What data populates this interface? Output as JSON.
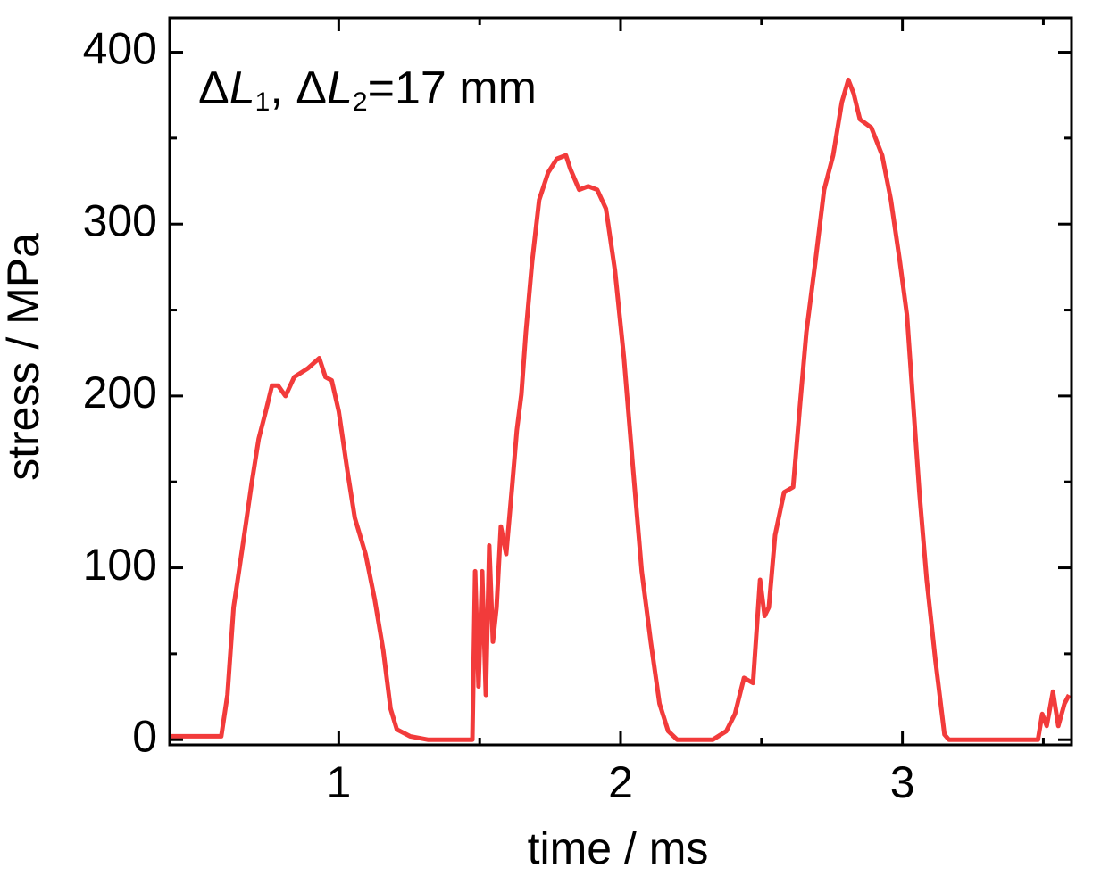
{
  "chart_data": {
    "type": "line",
    "annotation": [
      "Δ",
      "L",
      "1",
      ", Δ",
      "L",
      "2",
      "=17 mm"
    ],
    "xlabel": "time / ms",
    "ylabel": "stress / MPa",
    "xlim": [
      0.4,
      3.6
    ],
    "ylim": [
      -3,
      420
    ],
    "xticks": [
      1,
      2,
      3
    ],
    "yticks": [
      0,
      100,
      200,
      300,
      400
    ],
    "xticks_minor": [
      1.5,
      2.5,
      3.5
    ],
    "yticks_minor": [
      50,
      150,
      250,
      350
    ],
    "series": [
      {
        "color": "#f23b3b",
        "x": [
          0.4,
          0.583,
          0.605,
          0.627,
          0.646,
          0.669,
          0.691,
          0.716,
          0.741,
          0.763,
          0.785,
          0.811,
          0.842,
          0.89,
          0.931,
          0.953,
          0.975,
          1.0,
          1.032,
          1.057,
          1.095,
          1.127,
          1.158,
          1.184,
          1.206,
          1.253,
          1.316,
          1.474,
          1.484,
          1.496,
          1.509,
          1.522,
          1.534,
          1.547,
          1.56,
          1.575,
          1.594,
          1.616,
          1.632,
          1.648,
          1.664,
          1.686,
          1.711,
          1.743,
          1.774,
          1.806,
          1.822,
          1.853,
          1.885,
          1.917,
          1.948,
          1.98,
          2.012,
          2.043,
          2.075,
          2.107,
          2.138,
          2.169,
          2.201,
          2.327,
          2.375,
          2.406,
          2.438,
          2.47,
          2.495,
          2.511,
          2.526,
          2.548,
          2.58,
          2.612,
          2.637,
          2.659,
          2.691,
          2.722,
          2.754,
          2.785,
          2.808,
          2.827,
          2.849,
          2.89,
          2.928,
          2.959,
          2.991,
          3.016,
          3.038,
          3.06,
          3.086,
          3.117,
          3.149,
          3.165,
          3.481,
          3.496,
          3.512,
          3.534,
          3.553,
          3.575,
          3.591
        ],
        "values": [
          2,
          2,
          26,
          77,
          98,
          124,
          149,
          175,
          191,
          206,
          206,
          200,
          211,
          216,
          222,
          211,
          209,
          191,
          155,
          129,
          108,
          82,
          52,
          18,
          6,
          2,
          0,
          0,
          98,
          31,
          98,
          26,
          113,
          57,
          77,
          124,
          108,
          149,
          180,
          201,
          237,
          278,
          314,
          330,
          338,
          340,
          332,
          320,
          322,
          320,
          309,
          273,
          222,
          160,
          98,
          57,
          21,
          5,
          0,
          0,
          5,
          15,
          36,
          33,
          93,
          72,
          77,
          119,
          144,
          147,
          196,
          237,
          278,
          320,
          340,
          371,
          384,
          376,
          361,
          356,
          340,
          314,
          278,
          247,
          196,
          144,
          93,
          46,
          3,
          0,
          0,
          15,
          8,
          28,
          8,
          21,
          26
        ]
      }
    ]
  }
}
